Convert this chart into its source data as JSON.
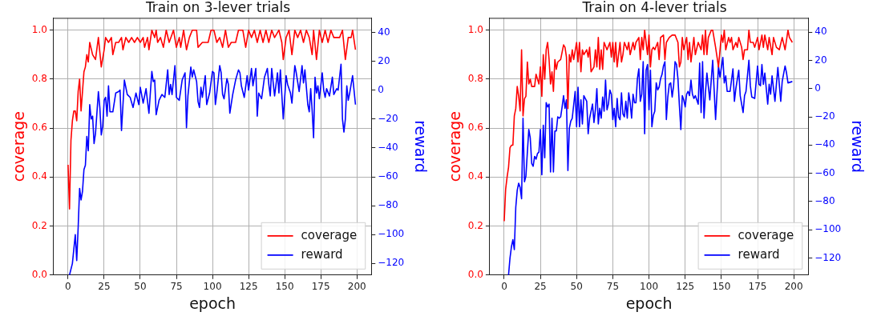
{
  "chart_data": [
    {
      "type": "line",
      "title": "Train on 3-lever trials",
      "xlabel": "epoch",
      "ylabel": "coverage",
      "y2label": "reward",
      "xlim": [
        -10,
        210
      ],
      "xticks": [
        0,
        25,
        50,
        75,
        100,
        125,
        150,
        175,
        200
      ],
      "ylim": [
        0,
        1.05
      ],
      "yticks": [
        {
          "value": 0,
          "label": "0.0"
        },
        {
          "value": 0.2,
          "label": "0.2"
        },
        {
          "value": 0.4,
          "label": "0.4"
        },
        {
          "value": 0.6,
          "label": "0.6"
        },
        {
          "value": 0.8,
          "label": "0.8"
        },
        {
          "value": 1,
          "label": "1.0"
        }
      ],
      "y2lim": [
        -128,
        50
      ],
      "y2ticks": [
        {
          "value": -120,
          "label": "−120"
        },
        {
          "value": -100,
          "label": "−100"
        },
        {
          "value": -80,
          "label": "−80"
        },
        {
          "value": -60,
          "label": "−60"
        },
        {
          "value": -40,
          "label": "−40"
        },
        {
          "value": -20,
          "label": "−20"
        },
        0,
        20,
        40
      ],
      "grid": true,
      "legend": "bottom right",
      "series": [
        {
          "name": "coverage",
          "color": "#ff0000",
          "x": [
            0,
            1,
            2,
            3,
            4,
            5,
            6,
            7,
            8,
            9,
            10,
            11,
            12,
            13,
            14,
            15,
            17,
            19,
            21,
            23,
            25,
            26,
            28,
            30,
            31,
            33,
            35,
            37,
            38,
            40,
            42,
            44,
            46,
            48,
            50,
            52,
            53,
            55,
            56,
            58,
            60,
            61,
            62,
            64,
            66,
            68,
            70,
            73,
            75,
            77,
            78,
            80,
            82,
            84,
            86,
            89,
            90,
            93,
            97,
            99,
            101,
            103,
            105,
            107,
            109,
            111,
            113,
            116,
            118,
            121,
            123,
            125,
            127,
            129,
            131,
            133,
            135,
            137,
            139,
            141,
            143,
            146,
            148,
            149,
            151,
            153,
            155,
            157,
            159,
            161,
            163,
            165,
            167,
            169,
            170,
            172,
            174,
            176,
            178,
            180,
            182,
            184,
            188,
            190,
            192,
            194,
            196,
            197,
            199
          ],
          "values": [
            0.45,
            0.27,
            0.55,
            0.63,
            0.67,
            0.67,
            0.63,
            0.75,
            0.8,
            0.67,
            0.75,
            0.83,
            0.85,
            0.9,
            0.87,
            0.95,
            0.9,
            0.88,
            0.97,
            0.85,
            0.92,
            0.97,
            0.95,
            0.97,
            0.9,
            0.95,
            0.95,
            0.97,
            0.92,
            0.97,
            0.95,
            0.97,
            0.95,
            0.97,
            0.95,
            0.97,
            0.93,
            0.97,
            0.92,
            1.0,
            0.97,
            1.0,
            0.95,
            0.97,
            0.93,
            1.0,
            0.95,
            1.0,
            0.93,
            0.97,
            0.93,
            1.0,
            0.92,
            0.97,
            1.0,
            1.0,
            0.93,
            0.95,
            0.95,
            1.0,
            1.0,
            0.95,
            0.97,
            0.93,
            1.0,
            0.93,
            0.95,
            0.95,
            1.0,
            1.0,
            0.93,
            1.0,
            0.97,
            1.0,
            0.95,
            1.0,
            0.95,
            1.0,
            0.95,
            1.0,
            0.97,
            1.0,
            0.95,
            0.88,
            0.97,
            1.0,
            0.9,
            1.0,
            0.97,
            1.0,
            0.95,
            1.0,
            0.97,
            0.9,
            1.0,
            0.88,
            1.0,
            0.95,
            1.0,
            0.95,
            1.0,
            0.97,
            0.97,
            1.0,
            0.88,
            0.97,
            0.97,
            1.0,
            0.92
          ]
        },
        {
          "name": "reward",
          "color": "#0000ff",
          "axis": "y2",
          "x": [
            1,
            3,
            5,
            6,
            7,
            8,
            9,
            10,
            11,
            12,
            13,
            14,
            15,
            16,
            17,
            18,
            19,
            21,
            22,
            23,
            24,
            25,
            26,
            27,
            28,
            29,
            31,
            33,
            35,
            36,
            37,
            39,
            41,
            43,
            45,
            47,
            49,
            50,
            52,
            54,
            56,
            58,
            59,
            60,
            61,
            63,
            65,
            67,
            69,
            70,
            71,
            72,
            74,
            75,
            77,
            79,
            81,
            82,
            83,
            85,
            86,
            87,
            89,
            90,
            91,
            92,
            93,
            95,
            96,
            98,
            100,
            101,
            102,
            103,
            105,
            106,
            107,
            108,
            110,
            111,
            112,
            114,
            116,
            118,
            119,
            120,
            122,
            124,
            125,
            127,
            128,
            130,
            131,
            132,
            134,
            136,
            138,
            139,
            140,
            141,
            143,
            145,
            146,
            147,
            149,
            151,
            152,
            154,
            155,
            157,
            158,
            160,
            162,
            163,
            164,
            166,
            167,
            168,
            169,
            170,
            171,
            172,
            173,
            174,
            176,
            177,
            178,
            179,
            181,
            183,
            184,
            186,
            187,
            189,
            190,
            191,
            192,
            193,
            194,
            195,
            197,
            199
          ],
          "values": [
            -128,
            -120,
            -100,
            -118,
            -95,
            -68,
            -76,
            -70,
            -55,
            -52,
            -32,
            -42,
            -10,
            -20,
            -18,
            -37,
            -30,
            -1,
            -12,
            -31,
            -25,
            -7,
            -5,
            -18,
            3,
            -15,
            -15,
            -2,
            -1,
            0,
            -28,
            7,
            -3,
            -5,
            -12,
            -2,
            -10,
            2,
            -9,
            1,
            -16,
            13,
            6,
            7,
            -17,
            -7,
            -3,
            -5,
            14,
            -3,
            4,
            -3,
            17,
            -5,
            -7,
            7,
            12,
            -26,
            -4,
            16,
            9,
            14,
            6,
            -8,
            -12,
            2,
            -5,
            10,
            -10,
            -2,
            13,
            12,
            -10,
            -2,
            17,
            12,
            -3,
            -6,
            8,
            4,
            -16,
            -3,
            7,
            14,
            12,
            3,
            -5,
            10,
            0,
            15,
            3,
            15,
            -18,
            -2,
            -6,
            9,
            15,
            4,
            -4,
            15,
            -4,
            12,
            -2,
            14,
            -20,
            10,
            4,
            -2,
            -9,
            17,
            12,
            -1,
            17,
            5,
            14,
            -10,
            -15,
            1,
            -14,
            -33,
            9,
            -2,
            3,
            -6,
            12,
            0,
            -5,
            1,
            -4,
            9,
            -3,
            1,
            0,
            18,
            -20,
            -29,
            -20,
            3,
            -7,
            -2,
            10,
            -10
          ]
        }
      ]
    },
    {
      "type": "line",
      "title": "Train on 4-lever trials",
      "xlabel": "epoch",
      "ylabel": "coverage",
      "y2label": "reward",
      "xlim": [
        -10,
        210
      ],
      "xticks": [
        0,
        25,
        50,
        75,
        100,
        125,
        150,
        175,
        200
      ],
      "ylim": [
        0,
        1.05
      ],
      "yticks": [
        {
          "value": 0,
          "label": "0.0"
        },
        {
          "value": 0.2,
          "label": "0.2"
        },
        {
          "value": 0.4,
          "label": "0.4"
        },
        {
          "value": 0.6,
          "label": "0.6"
        },
        {
          "value": 0.8,
          "label": "0.8"
        },
        {
          "value": 1,
          "label": "1.0"
        }
      ],
      "y2lim": [
        -132,
        50
      ],
      "y2ticks": [
        {
          "value": -120,
          "label": "−120"
        },
        {
          "value": -100,
          "label": "−100"
        },
        {
          "value": -80,
          "label": "−80"
        },
        {
          "value": -60,
          "label": "−60"
        },
        {
          "value": -40,
          "label": "−40"
        },
        {
          "value": -20,
          "label": "−20"
        },
        0,
        20,
        40
      ],
      "grid": true,
      "legend": "bottom right",
      "series": [
        {
          "name": "coverage",
          "color": "#ff0000",
          "x": [
            0,
            1,
            2,
            3,
            4,
            5,
            6,
            7,
            8,
            9,
            10,
            11,
            12,
            13,
            14,
            15,
            16,
            17,
            18,
            19,
            21,
            22,
            24,
            25,
            26,
            27,
            28,
            29,
            30,
            31,
            32,
            33,
            34,
            35,
            36,
            37,
            39,
            41,
            42,
            43,
            44,
            45,
            46,
            47,
            48,
            50,
            51,
            52,
            53,
            54,
            55,
            57,
            58,
            59,
            60,
            62,
            63,
            64,
            65,
            66,
            67,
            68,
            69,
            71,
            73,
            74,
            75,
            76,
            77,
            78,
            80,
            81,
            82,
            83,
            85,
            86,
            87,
            89,
            90,
            91,
            93,
            94,
            95,
            96,
            97,
            98,
            99,
            100,
            101,
            102,
            103,
            104,
            106,
            107,
            108,
            110,
            111,
            112,
            114,
            116,
            118,
            120,
            121,
            122,
            123,
            124,
            126,
            127,
            128,
            129,
            131,
            132,
            134,
            136,
            137,
            138,
            139,
            140,
            141,
            143,
            144,
            146,
            148,
            150,
            151,
            152,
            153,
            155,
            156,
            157,
            158,
            160,
            161,
            162,
            164,
            165,
            166,
            168,
            169,
            170,
            172,
            173,
            175,
            176,
            178,
            179,
            180,
            182,
            183,
            185,
            186,
            188,
            190,
            192,
            194,
            196,
            197,
            199
          ],
          "values": [
            0.22,
            0.35,
            0.4,
            0.44,
            0.52,
            0.53,
            0.53,
            0.65,
            0.68,
            0.77,
            0.73,
            0.67,
            0.92,
            0.65,
            0.72,
            0.73,
            0.87,
            0.78,
            0.8,
            0.77,
            0.77,
            0.82,
            0.78,
            0.85,
            0.73,
            0.9,
            0.8,
            0.92,
            0.95,
            0.88,
            0.78,
            0.83,
            0.75,
            0.88,
            0.84,
            0.87,
            0.88,
            0.94,
            0.93,
            0.89,
            0.68,
            0.9,
            0.87,
            0.92,
            0.88,
            0.95,
            0.87,
            0.95,
            0.83,
            0.92,
            0.9,
            0.92,
            0.89,
            0.93,
            0.83,
            0.85,
            0.92,
            0.85,
            0.97,
            0.84,
            0.92,
            0.84,
            0.95,
            0.92,
            0.95,
            0.89,
            0.95,
            0.87,
            0.95,
            0.85,
            0.95,
            0.87,
            0.9,
            0.95,
            0.92,
            0.95,
            0.9,
            0.95,
            0.92,
            0.95,
            0.97,
            0.88,
            0.97,
            0.92,
            1.0,
            0.95,
            0.9,
            0.98,
            0.85,
            0.92,
            0.93,
            0.92,
            0.95,
            0.88,
            0.97,
            0.98,
            0.88,
            0.95,
            0.97,
            0.98,
            0.98,
            0.95,
            0.85,
            0.87,
            0.97,
            0.92,
            0.97,
            0.88,
            0.95,
            0.87,
            0.97,
            0.9,
            0.95,
            0.92,
            0.98,
            0.9,
            1.0,
            0.9,
            0.97,
            1.0,
            1.0,
            0.93,
            0.85,
            0.98,
            0.95,
            1.0,
            0.92,
            0.97,
            0.95,
            0.97,
            0.92,
            0.95,
            0.93,
            0.97,
            0.93,
            0.88,
            0.92,
            0.92,
            1.0,
            0.95,
            0.95,
            0.93,
            0.97,
            0.92,
            0.98,
            0.93,
            0.98,
            0.92,
            0.97,
            0.9,
            0.97,
            0.93,
            0.92,
            0.97,
            0.92,
            1.0,
            0.97,
            0.95
          ]
        },
        {
          "name": "reward",
          "color": "#0000ff",
          "axis": "y2",
          "x": [
            3,
            4,
            5,
            6,
            7,
            8,
            9,
            10,
            11,
            12,
            13,
            14,
            15,
            16,
            17,
            18,
            19,
            20,
            21,
            22,
            23,
            24,
            25,
            26,
            27,
            28,
            29,
            30,
            31,
            32,
            33,
            34,
            35,
            36,
            37,
            38,
            39,
            40,
            41,
            42,
            43,
            44,
            45,
            46,
            47,
            49,
            50,
            51,
            52,
            53,
            54,
            55,
            56,
            57,
            58,
            59,
            61,
            62,
            63,
            64,
            65,
            66,
            67,
            68,
            69,
            70,
            71,
            72,
            73,
            74,
            75,
            76,
            77,
            78,
            79,
            80,
            81,
            82,
            83,
            84,
            85,
            86,
            87,
            88,
            89,
            90,
            91,
            92,
            93,
            94,
            95,
            96,
            97,
            98,
            99,
            100,
            101,
            102,
            103,
            104,
            105,
            106,
            107,
            108,
            109,
            110,
            111,
            112,
            113,
            114,
            115,
            116,
            117,
            118,
            119,
            120,
            121,
            122,
            123,
            124,
            125,
            126,
            127,
            128,
            129,
            130,
            131,
            132,
            134,
            135,
            136,
            137,
            138,
            139,
            140,
            142,
            144,
            146,
            148,
            149,
            151,
            152,
            153,
            154,
            156,
            158,
            159,
            160,
            162,
            163,
            165,
            166,
            167,
            169,
            170,
            171,
            173,
            175,
            176,
            177,
            178,
            179,
            180,
            182,
            183,
            184,
            185,
            187,
            188,
            189,
            191,
            192,
            194,
            195,
            196,
            199
          ],
          "values": [
            -132,
            -120,
            -112,
            -107,
            -114,
            -84,
            -72,
            -67,
            -70,
            -78,
            -21,
            -66,
            -62,
            -45,
            -29,
            -35,
            -53,
            -55,
            -48,
            -50,
            -46,
            -45,
            -29,
            -61,
            -26,
            -49,
            -10,
            -13,
            -11,
            -59,
            -21,
            -59,
            -30,
            -30,
            -20,
            -21,
            -20,
            -13,
            -5,
            -14,
            -8,
            -58,
            -28,
            -23,
            -21,
            -2,
            -27,
            1,
            -27,
            -8,
            -25,
            -5,
            -7,
            -9,
            -32,
            -21,
            -11,
            -24,
            -15,
            0,
            -25,
            -14,
            -21,
            -6,
            -16,
            6,
            -15,
            -11,
            -1,
            -4,
            -22,
            -14,
            -27,
            -7,
            -20,
            -22,
            -3,
            -18,
            -20,
            -9,
            -21,
            -3,
            -10,
            -21,
            -4,
            -10,
            -10,
            7,
            14,
            -9,
            -4,
            19,
            -32,
            13,
            17,
            -15,
            13,
            -27,
            -19,
            -16,
            4,
            -1,
            1,
            7,
            10,
            16,
            19,
            -22,
            -6,
            3,
            4,
            -6,
            2,
            19,
            17,
            7,
            -12,
            -29,
            -5,
            -8,
            -13,
            -4,
            -2,
            -5,
            6,
            -4,
            -7,
            -5,
            -11,
            18,
            -17,
            19,
            -21,
            -3,
            11,
            -8,
            20,
            -22,
            16,
            8,
            22,
            4,
            9,
            -2,
            -2,
            14,
            -9,
            0,
            13,
            -5,
            -17,
            -5,
            -2,
            20,
            2,
            -6,
            -7,
            16,
            3,
            2,
            17,
            3,
            11,
            -11,
            3,
            -4,
            9,
            -9,
            3,
            15,
            -9,
            5,
            16,
            11,
            4,
            5
          ]
        }
      ]
    }
  ]
}
